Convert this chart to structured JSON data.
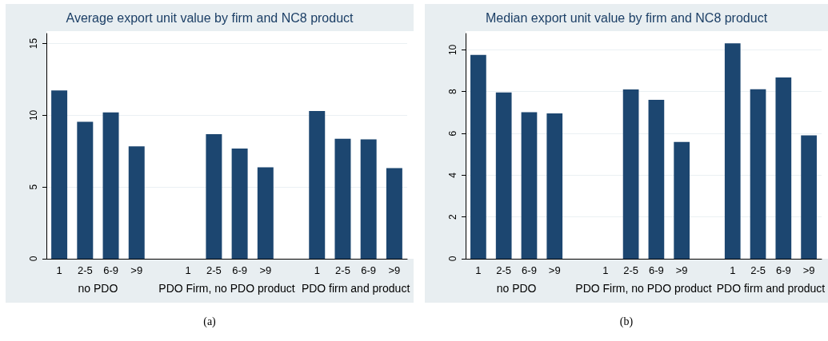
{
  "chart_data": [
    {
      "type": "bar",
      "title": "Average export unit value by firm and NC8 product",
      "categories": [
        "1",
        "2-5",
        "6-9",
        ">9",
        null,
        "1",
        "2-5",
        "6-9",
        ">9",
        null,
        "1",
        "2-5",
        "6-9",
        ">9"
      ],
      "series": [
        {
          "color": "#1c4670",
          "values": [
            11.73,
            9.55,
            10.2,
            7.83,
            null,
            null,
            8.68,
            7.68,
            6.38,
            null,
            10.3,
            8.36,
            8.33,
            6.32
          ]
        }
      ],
      "ylim": [
        0,
        15.7
      ],
      "yticks": [
        0,
        5,
        10,
        15
      ],
      "grid": "y",
      "annotations": [
        "no PDO",
        "PDO Firm, no PDO product",
        "PDO firm and product",
        "(a)"
      ]
    },
    {
      "type": "bar",
      "title": "Median export unit value by firm and NC8 product",
      "categories": [
        "1",
        "2-5",
        "6-9",
        ">9",
        null,
        "1",
        "2-5",
        "6-9",
        ">9",
        null,
        "1",
        "2-5",
        "6-9",
        ">9"
      ],
      "series": [
        {
          "color": "#1c4670",
          "values": [
            9.76,
            7.96,
            7.01,
            6.96,
            null,
            null,
            8.1,
            7.61,
            5.59,
            null,
            10.31,
            8.11,
            8.68,
            5.91
          ]
        }
      ],
      "ylim": [
        0,
        10.78
      ],
      "yticks": [
        0,
        2,
        4,
        6,
        8,
        10
      ],
      "grid": "y",
      "annotations": [
        "no PDO",
        "PDO Firm, no PDO product",
        "PDO firm and product",
        "(b)"
      ]
    }
  ]
}
